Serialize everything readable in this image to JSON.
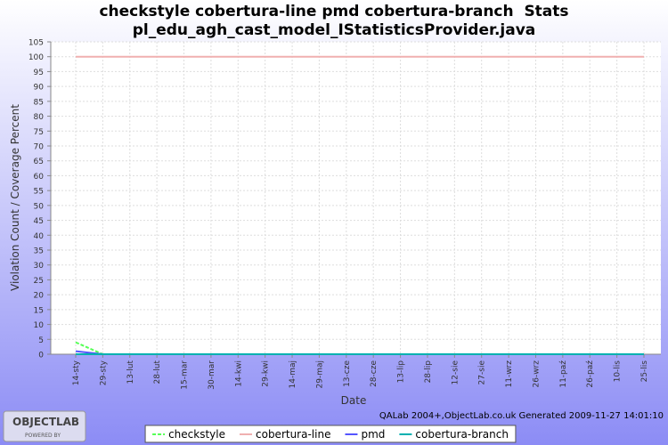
{
  "chart_data": {
    "type": "line",
    "title": "checkstyle cobertura-line pmd cobertura-branch  Stats",
    "subtitle": "pl_edu_agh_cast_model_IStatisticsProvider.java",
    "x_label": "Date",
    "y_label": "Violation Count / Coverage Percent",
    "categories": [
      "14-sty",
      "29-sty",
      "13-lut",
      "28-lut",
      "15-mar",
      "30-mar",
      "14-kwi",
      "29-kwi",
      "14-maj",
      "29-maj",
      "13-cze",
      "28-cze",
      "13-lip",
      "28-lip",
      "12-sie",
      "27-sie",
      "11-wrz",
      "26-wrz",
      "11-paź",
      "26-paź",
      "10-lis",
      "25-lis"
    ],
    "series": [
      {
        "name": "checkstyle",
        "color": "#55ff55",
        "values": [
          4,
          0,
          0,
          0,
          0,
          0,
          0,
          0,
          0,
          0,
          0,
          0,
          0,
          0,
          0,
          0,
          0,
          0,
          0,
          0,
          0,
          0
        ]
      },
      {
        "name": "cobertura-line",
        "color": "#f0b0b0",
        "values": [
          100,
          100,
          100,
          100,
          100,
          100,
          100,
          100,
          100,
          100,
          100,
          100,
          100,
          100,
          100,
          100,
          100,
          100,
          100,
          100,
          100,
          100
        ]
      },
      {
        "name": "pmd",
        "color": "#5555ff",
        "values": [
          1,
          0,
          0,
          0,
          0,
          0,
          0,
          0,
          0,
          0,
          0,
          0,
          0,
          0,
          0,
          0,
          0,
          0,
          0,
          0,
          0,
          0
        ]
      },
      {
        "name": "cobertura-branch",
        "color": "#00b0b0",
        "values": [
          0,
          0,
          0,
          0,
          0,
          0,
          0,
          0,
          0,
          0,
          0,
          0,
          0,
          0,
          0,
          0,
          0,
          0,
          0,
          0,
          0,
          0
        ]
      }
    ],
    "ylim": [
      0,
      105
    ],
    "yticks": [
      0,
      5,
      10,
      15,
      20,
      25,
      30,
      35,
      40,
      45,
      50,
      55,
      60,
      65,
      70,
      75,
      80,
      85,
      90,
      95,
      100,
      105
    ],
    "grid": true,
    "legend": "bottom"
  },
  "footer": "QALab 2004+,ObjectLab.co.uk Generated 2009-11-27 14:01:10",
  "logo": {
    "name": "OBJECTLAB",
    "tagline": "POWERED BY"
  }
}
